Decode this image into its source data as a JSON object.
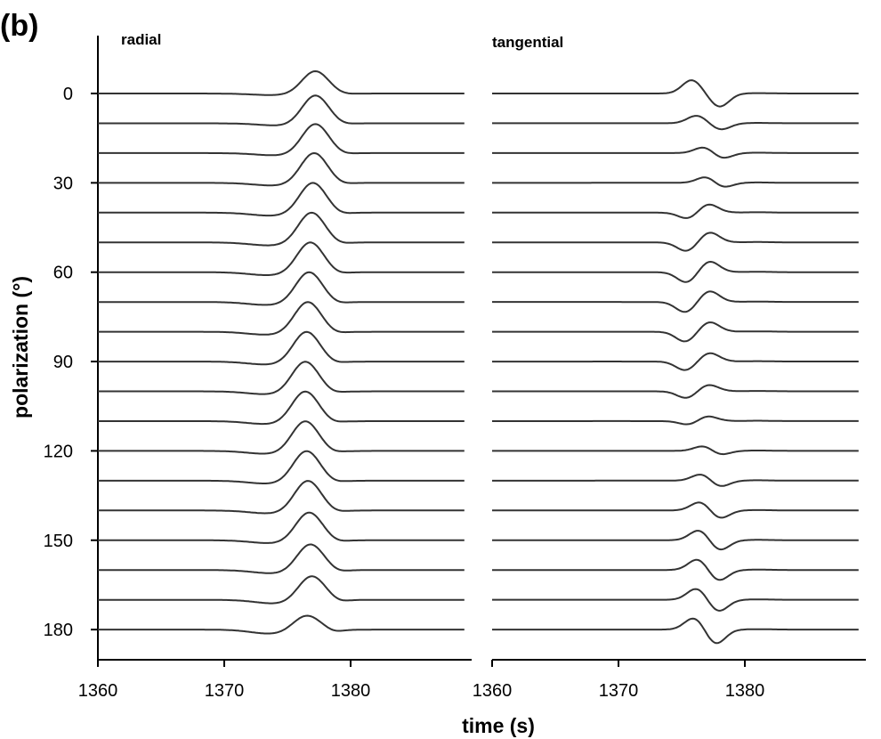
{
  "figure_label": "(b)",
  "chart_data": {
    "type": "line",
    "xlabel": "time (s)",
    "ylabel": "polarization (°)",
    "xlim": [
      1360,
      1389
    ],
    "ylim": [
      -5,
      190
    ],
    "grid": false,
    "x_ticks": [
      1360,
      1370,
      1380
    ],
    "y_ticks": [
      0,
      30,
      60,
      90,
      120,
      150,
      180
    ],
    "trace_offsets": [
      0,
      10,
      20,
      30,
      40,
      50,
      60,
      70,
      80,
      90,
      100,
      110,
      120,
      130,
      140,
      150,
      160,
      170,
      180
    ],
    "panels": [
      {
        "title": "radial",
        "series_description_per_offset": [
          {
            "offset": 0,
            "trough_time": 1373.8,
            "trough": -0.3,
            "peak_time": 1377.2,
            "peak": 6.0
          },
          {
            "offset": 10,
            "trough_time": 1374.5,
            "trough": -0.5,
            "peak_time": 1377.2,
            "peak": 7.5
          },
          {
            "offset": 20,
            "trough_time": 1374.2,
            "trough": -0.5,
            "peak_time": 1377.2,
            "peak": 7.8
          },
          {
            "offset": 30,
            "trough_time": 1374.0,
            "trough": -0.6,
            "peak_time": 1377.1,
            "peak": 8.0
          },
          {
            "offset": 40,
            "trough_time": 1373.8,
            "trough": -0.7,
            "peak_time": 1377.0,
            "peak": 8.0
          },
          {
            "offset": 50,
            "trough_time": 1373.7,
            "trough": -0.7,
            "peak_time": 1376.9,
            "peak": 8.0
          },
          {
            "offset": 60,
            "trough_time": 1373.6,
            "trough": -0.7,
            "peak_time": 1376.8,
            "peak": 8.0
          },
          {
            "offset": 70,
            "trough_time": 1373.5,
            "trough": -0.7,
            "peak_time": 1376.7,
            "peak": 8.0
          },
          {
            "offset": 80,
            "trough_time": 1373.5,
            "trough": -0.7,
            "peak_time": 1376.6,
            "peak": 8.0
          },
          {
            "offset": 90,
            "trough_time": 1373.5,
            "trough": -0.7,
            "peak_time": 1376.5,
            "peak": 8.0
          },
          {
            "offset": 100,
            "trough_time": 1373.5,
            "trough": -0.7,
            "peak_time": 1376.4,
            "peak": 8.0
          },
          {
            "offset": 110,
            "trough_time": 1373.5,
            "trough": -0.7,
            "peak_time": 1376.4,
            "peak": 8.0
          },
          {
            "offset": 120,
            "trough_time": 1373.5,
            "trough": -0.7,
            "peak_time": 1376.4,
            "peak": 8.0
          },
          {
            "offset": 130,
            "trough_time": 1373.6,
            "trough": -0.7,
            "peak_time": 1376.5,
            "peak": 8.0
          },
          {
            "offset": 140,
            "trough_time": 1373.7,
            "trough": -0.7,
            "peak_time": 1376.6,
            "peak": 8.0
          },
          {
            "offset": 150,
            "trough_time": 1373.8,
            "trough": -0.7,
            "peak_time": 1376.7,
            "peak": 7.5
          },
          {
            "offset": 160,
            "trough_time": 1374.0,
            "trough": -0.8,
            "peak_time": 1376.8,
            "peak": 7.0
          },
          {
            "offset": 170,
            "trough_time": 1374.2,
            "trough": -0.9,
            "peak_time": 1376.9,
            "peak": 6.5
          },
          {
            "offset": 180,
            "trough_time": 1373.8,
            "trough": -1.0,
            "peak_time": 1376.5,
            "peak": 4.0
          }
        ]
      },
      {
        "title": "tangential",
        "series_description_per_offset": [
          {
            "offset": 0,
            "peak_time": 1375.8,
            "peak": 3.5,
            "trough_time": 1378.0,
            "trough": -3.5
          },
          {
            "offset": 10,
            "peak_time": 1376.2,
            "peak": 2.0,
            "trough_time": 1378.1,
            "trough": -1.7
          },
          {
            "offset": 20,
            "peak_time": 1376.8,
            "peak": 1.6,
            "trough_time": 1378.2,
            "trough": -1.5
          },
          {
            "offset": 30,
            "peak_time": 1377.0,
            "peak": 1.7,
            "trough_time": 1378.2,
            "trough": -1.4
          },
          {
            "offset": 40,
            "peak_time": 1377.1,
            "peak": 2.2,
            "trough_time": 1375.5,
            "trough": -1.6
          },
          {
            "offset": 50,
            "peak_time": 1377.2,
            "peak": 2.6,
            "trough_time": 1375.4,
            "trough": -2.3
          },
          {
            "offset": 60,
            "peak_time": 1377.2,
            "peak": 2.8,
            "trough_time": 1375.4,
            "trough": -2.7
          },
          {
            "offset": 70,
            "peak_time": 1377.2,
            "peak": 2.8,
            "trough_time": 1375.3,
            "trough": -2.7
          },
          {
            "offset": 80,
            "peak_time": 1377.2,
            "peak": 2.5,
            "trough_time": 1375.3,
            "trough": -2.6
          },
          {
            "offset": 90,
            "peak_time": 1377.2,
            "peak": 2.2,
            "trough_time": 1375.3,
            "trough": -2.3
          },
          {
            "offset": 100,
            "peak_time": 1377.1,
            "peak": 1.7,
            "trough_time": 1375.4,
            "trough": -1.8
          },
          {
            "offset": 110,
            "peak_time": 1377.0,
            "peak": 1.3,
            "trough_time": 1375.6,
            "trough": -1.0
          },
          {
            "offset": 120,
            "peak_time": 1376.8,
            "peak": 1.4,
            "trough_time": 1378.0,
            "trough": -1.2
          },
          {
            "offset": 130,
            "peak_time": 1376.6,
            "peak": 1.8,
            "trough_time": 1378.0,
            "trough": -1.7
          },
          {
            "offset": 140,
            "peak_time": 1376.5,
            "peak": 2.3,
            "trough_time": 1378.0,
            "trough": -2.2
          },
          {
            "offset": 150,
            "peak_time": 1376.4,
            "peak": 2.7,
            "trough_time": 1378.0,
            "trough": -2.7
          },
          {
            "offset": 160,
            "peak_time": 1376.3,
            "peak": 2.9,
            "trough_time": 1377.9,
            "trough": -2.9
          },
          {
            "offset": 170,
            "peak_time": 1376.2,
            "peak": 3.0,
            "trough_time": 1377.9,
            "trough": -3.1
          },
          {
            "offset": 180,
            "peak_time": 1376.0,
            "peak": 3.1,
            "trough_time": 1377.7,
            "trough": -3.8
          }
        ]
      }
    ]
  },
  "colors": {
    "trace": "#333333",
    "axis": "#000000",
    "background": "#ffffff"
  }
}
